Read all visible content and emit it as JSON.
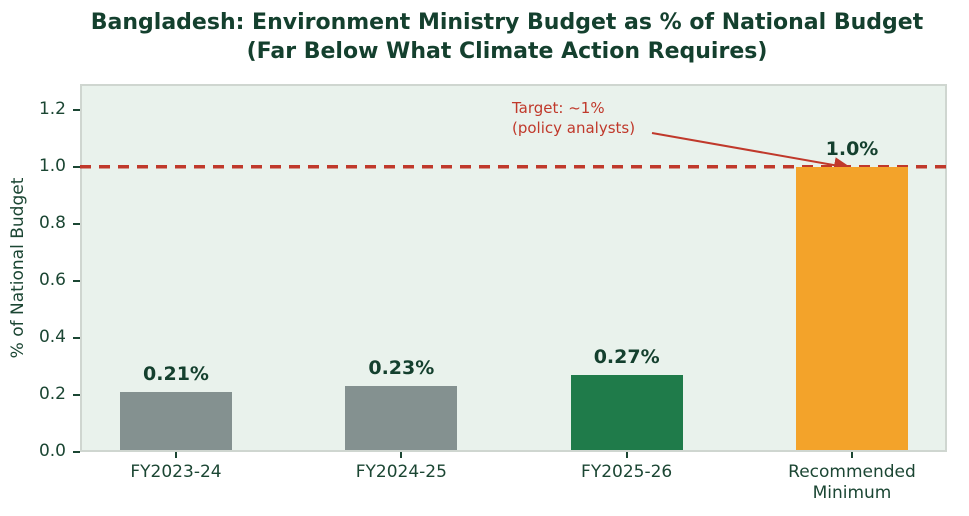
{
  "chart_data": {
    "type": "bar",
    "title": "Bangladesh: Environment Ministry Budget as % of National Budget\n(Far Below What Climate Action Requires)",
    "ylabel": "% of National Budget",
    "xlabel": "",
    "categories": [
      "FY2023-24",
      "FY2024-25",
      "FY2025-26",
      "Recommended\nMinimum"
    ],
    "values": [
      0.21,
      0.23,
      0.27,
      1.0
    ],
    "bar_labels": [
      "0.21%",
      "0.23%",
      "0.27%",
      "1.0%"
    ],
    "bar_colors": [
      "#849190",
      "#849190",
      "#1f7b4a",
      "#f3a32a"
    ],
    "ylim": [
      0,
      1.29
    ],
    "yticks": [
      0,
      0.2,
      0.4,
      0.6,
      0.8,
      1.0,
      1.2
    ],
    "ytick_labels": [
      "0.0",
      "0.2",
      "0.4",
      "0.6",
      "0.8",
      "1.0",
      "1.2"
    ],
    "grid": false,
    "legend": null,
    "target_line": {
      "value": 1.0,
      "color": "#c0392b",
      "style": "dashed"
    },
    "annotation": {
      "text": "Target: ~1%\n(policy analysts)",
      "color": "#c0392b"
    },
    "colors": {
      "title": "#14402e",
      "axis_text": "#1b4633",
      "value_label": "#14402e",
      "plot_background": "#e9f2ec",
      "figure_background": "#ffffff",
      "spine": "#cfd6d0"
    }
  }
}
